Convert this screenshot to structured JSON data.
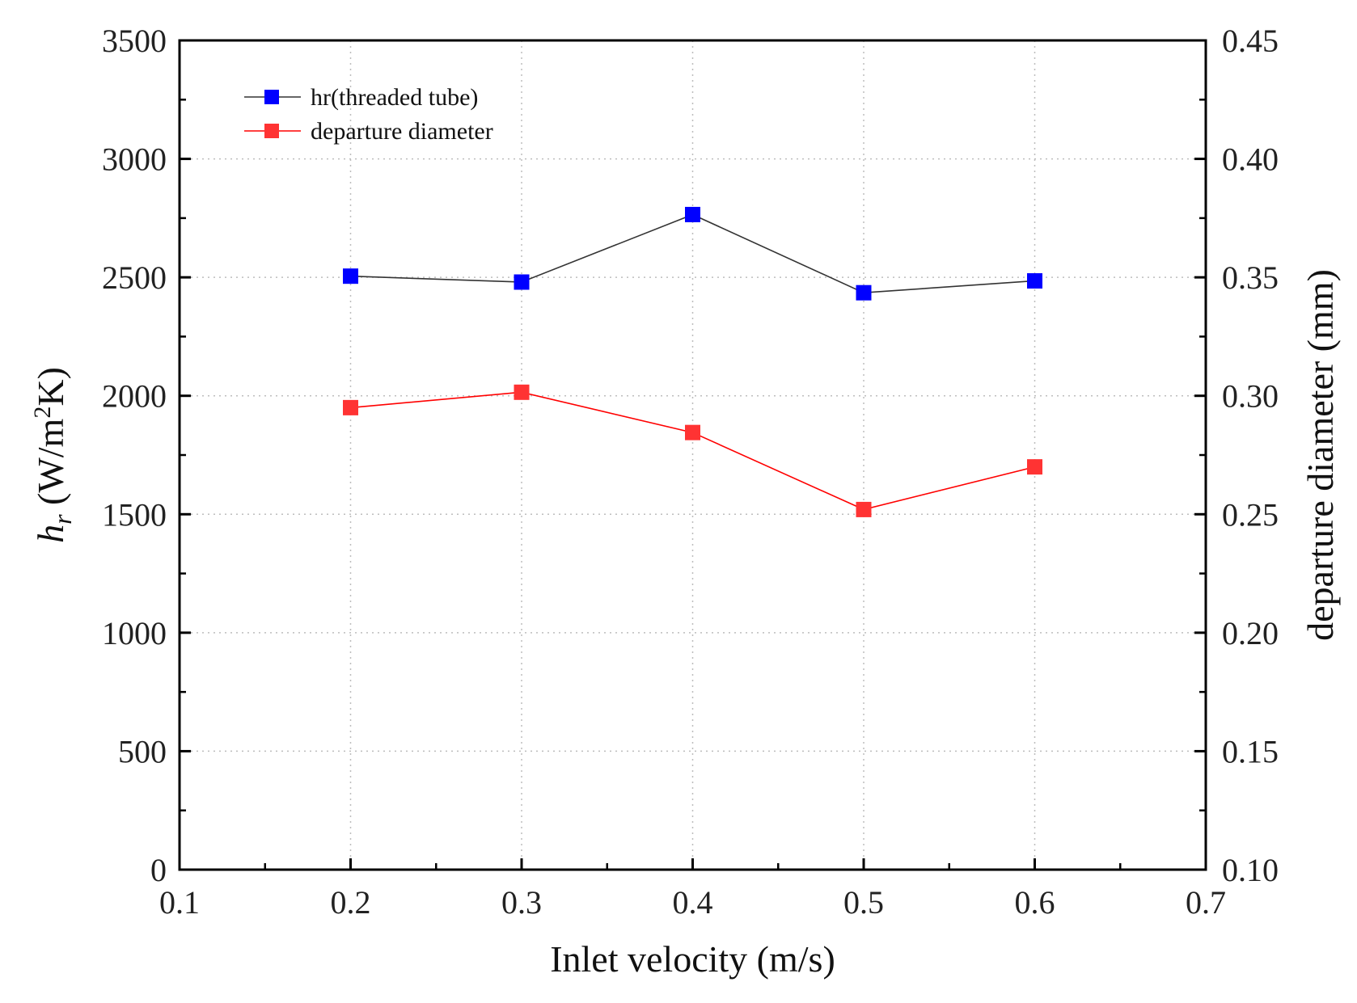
{
  "chart_data": {
    "type": "line",
    "title": "",
    "xlabel": "Inlet velocity (m/s)",
    "ylabel_left": {
      "main": "h",
      "sub": "r",
      "unit_open": " (W/m",
      "unit_sup": "2",
      "unit_close": "K)"
    },
    "ylabel_right": "departure diameter (mm)",
    "xlim": [
      0.1,
      0.7
    ],
    "ylim_left": [
      0,
      3500
    ],
    "ylim_right": [
      0.1,
      0.45
    ],
    "x_ticks": [
      "0.1",
      "0.2",
      "0.3",
      "0.4",
      "0.5",
      "0.6",
      "0.7"
    ],
    "y_left_ticks": [
      "0",
      "500",
      "1000",
      "1500",
      "2000",
      "2500",
      "3000",
      "3500"
    ],
    "y_right_ticks": [
      "0.10",
      "0.15",
      "0.20",
      "0.25",
      "0.30",
      "0.35",
      "0.40",
      "0.45"
    ],
    "grid": true,
    "legend_position": "top-left",
    "series": [
      {
        "name": "hr(threaded tube)",
        "axis": "left",
        "marker_color": "#0000ff",
        "line_color": "#333333",
        "x": [
          0.2,
          0.3,
          0.4,
          0.5,
          0.6
        ],
        "y": [
          2505,
          2480,
          2765,
          2435,
          2485
        ]
      },
      {
        "name": "departure diameter",
        "axis": "right",
        "marker_color": "#ff3333",
        "line_color": "#ff0000",
        "x": [
          0.2,
          0.3,
          0.4,
          0.5,
          0.6
        ],
        "y": [
          0.295,
          0.3015,
          0.2845,
          0.252,
          0.27
        ]
      }
    ]
  }
}
